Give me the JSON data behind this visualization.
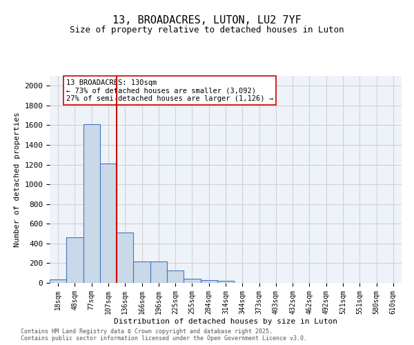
{
  "title1": "13, BROADACRES, LUTON, LU2 7YF",
  "title2": "Size of property relative to detached houses in Luton",
  "xlabel": "Distribution of detached houses by size in Luton",
  "ylabel": "Number of detached properties",
  "bin_labels": [
    "18sqm",
    "48sqm",
    "77sqm",
    "107sqm",
    "136sqm",
    "166sqm",
    "196sqm",
    "225sqm",
    "255sqm",
    "284sqm",
    "314sqm",
    "344sqm",
    "373sqm",
    "403sqm",
    "432sqm",
    "462sqm",
    "492sqm",
    "521sqm",
    "551sqm",
    "580sqm",
    "610sqm"
  ],
  "bar_values": [
    35,
    460,
    1610,
    1210,
    510,
    215,
    215,
    125,
    45,
    25,
    20,
    0,
    0,
    0,
    0,
    0,
    0,
    0,
    0,
    0,
    0
  ],
  "bar_color": "#c9d9e8",
  "bar_edge_color": "#4472c4",
  "grid_color": "#d0d0d0",
  "bg_color": "#eef3f9",
  "vline_x": 4,
  "vline_color": "#cc0000",
  "annotation_text": "13 BROADACRES: 130sqm\n← 73% of detached houses are smaller (3,092)\n27% of semi-detached houses are larger (1,126) →",
  "annotation_box_color": "#ffffff",
  "annotation_box_edge": "#cc0000",
  "ylim": [
    0,
    2100
  ],
  "yticks": [
    0,
    200,
    400,
    600,
    800,
    1000,
    1200,
    1400,
    1600,
    1800,
    2000
  ],
  "footer_line1": "Contains HM Land Registry data © Crown copyright and database right 2025.",
  "footer_line2": "Contains public sector information licensed under the Open Government Licence v3.0."
}
